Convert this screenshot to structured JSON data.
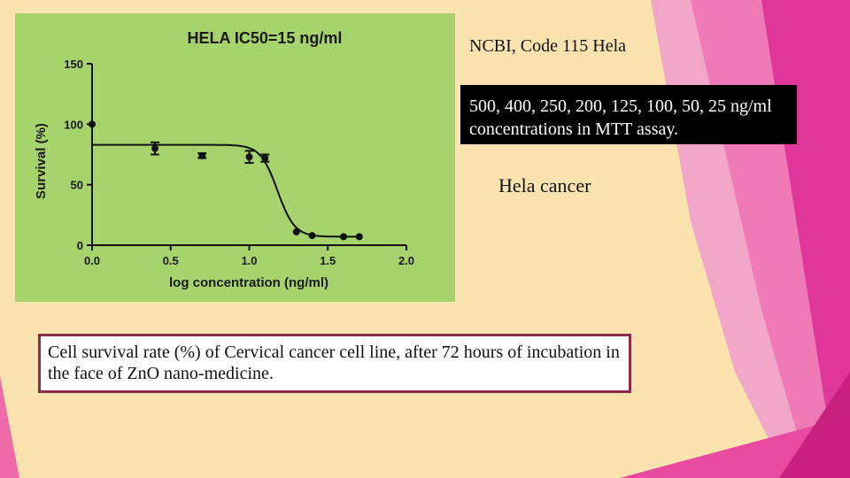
{
  "slide": {
    "colors": {
      "background": "#fbe3b0",
      "chart_panel": "#a6d36b",
      "accent_pink": "#e8489a",
      "caption_border": "#8b2a4a"
    },
    "source_note": "NCBI, Code 115 Hela",
    "concentrations_note": "500, 400, 250, 200, 125, 100, 50, 25 ng/ml concentrations in MTT assay.",
    "cancer_label": "Hela cancer",
    "caption": "Cell survival rate (%) of Cervical cancer cell line, after 72 hours of incubation in the face of ZnO nano-medicine."
  },
  "chart_data": {
    "type": "scatter",
    "title": "HELA IC50=15 ng/ml",
    "xlabel": "log concentration (ng/ml)",
    "ylabel": "Survival (%)",
    "xlim": [
      0.0,
      2.0
    ],
    "ylim": [
      0,
      150
    ],
    "xticks": [
      "0.0",
      "0.5",
      "1.0",
      "1.5",
      "2.0"
    ],
    "yticks": [
      "0",
      "50",
      "100",
      "150"
    ],
    "grid": false,
    "legend": "none",
    "points": [
      {
        "x": 0.0,
        "y": 100,
        "err": 0
      },
      {
        "x": 0.4,
        "y": 80,
        "err": 5
      },
      {
        "x": 0.7,
        "y": 74,
        "err": 2
      },
      {
        "x": 1.0,
        "y": 73,
        "err": 5
      },
      {
        "x": 1.1,
        "y": 72,
        "err": 3
      },
      {
        "x": 1.3,
        "y": 11,
        "err": 0
      },
      {
        "x": 1.4,
        "y": 8,
        "err": 0
      },
      {
        "x": 1.6,
        "y": 7,
        "err": 0
      },
      {
        "x": 1.7,
        "y": 7,
        "err": 0
      }
    ],
    "fit_curve": {
      "model": "sigmoidal dose-response",
      "top": 83,
      "bottom": 7,
      "log_ic50": 1.18,
      "hill_slope": -8
    }
  }
}
